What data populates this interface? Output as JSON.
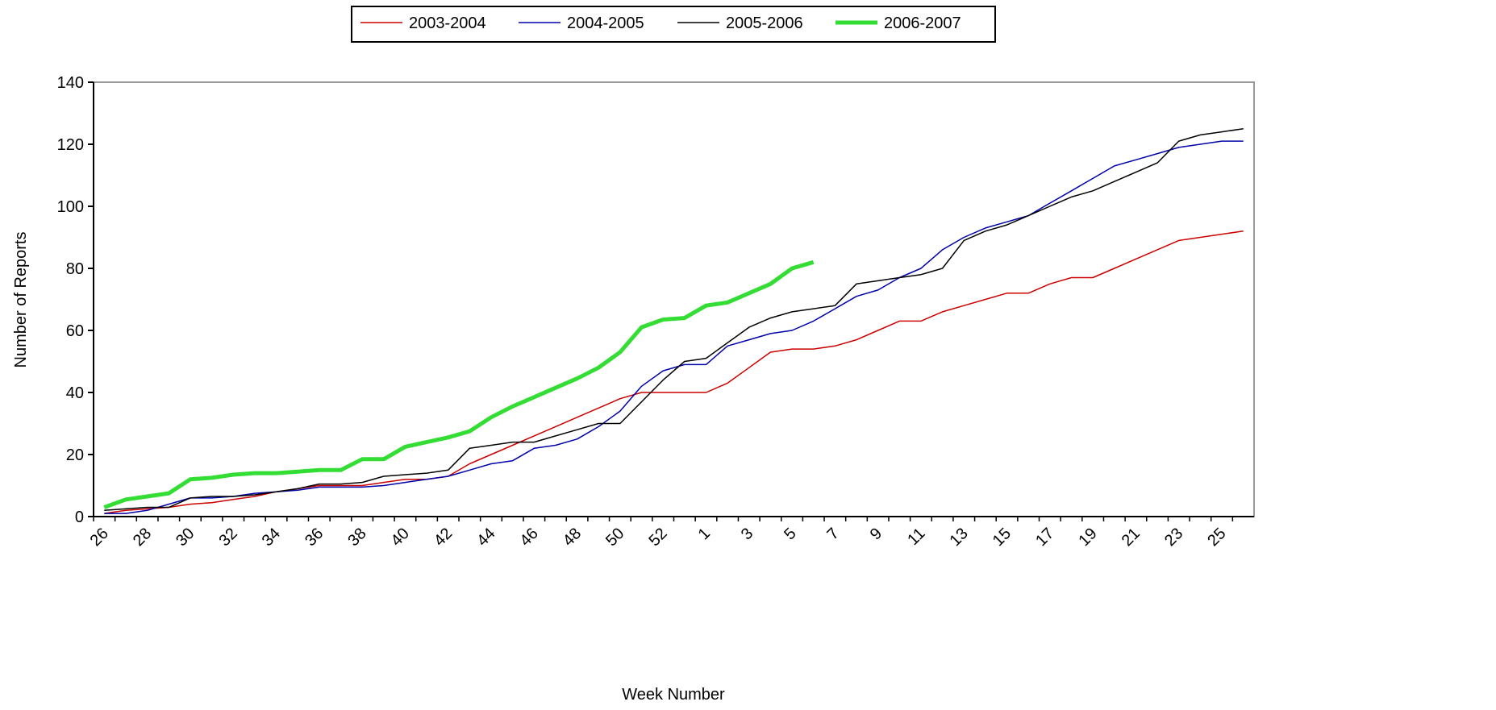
{
  "chart_data": {
    "type": "line",
    "x_label": "Week Number",
    "y_label": "Number of Reports",
    "categories": [
      "26",
      null,
      "28",
      null,
      "30",
      null,
      "32",
      null,
      "34",
      null,
      "36",
      null,
      "38",
      null,
      "40",
      null,
      "42",
      null,
      "44",
      null,
      "46",
      null,
      "48",
      null,
      "50",
      null,
      "52",
      null,
      "1",
      null,
      "3",
      null,
      "5",
      null,
      "7",
      null,
      "9",
      null,
      "11",
      null,
      "13",
      null,
      "15",
      null,
      "17",
      null,
      "19",
      null,
      "21",
      null,
      "23",
      null,
      "25",
      null
    ],
    "series": [
      {
        "name": "2003-2004",
        "color": "#cc0000",
        "width": 1.5,
        "values": [
          1,
          2,
          2.5,
          3,
          4,
          4.5,
          5.5,
          6.5,
          8,
          9,
          10,
          10,
          10,
          11,
          12,
          12,
          13,
          17,
          20,
          23,
          26,
          29,
          32,
          35,
          38,
          40,
          40,
          40,
          40,
          43,
          48,
          53,
          54,
          54,
          55,
          57,
          60,
          63,
          63,
          66,
          68,
          70,
          72,
          72,
          75,
          77,
          77,
          80,
          83,
          86,
          89,
          90,
          91,
          92
        ]
      },
      {
        "name": "2004-2005",
        "color": "#0000aa",
        "width": 1.5,
        "values": [
          1,
          1,
          2,
          4,
          6,
          6,
          6.5,
          7.5,
          8,
          8.5,
          9.5,
          9.5,
          9.5,
          10,
          11,
          12,
          13,
          15,
          17,
          18,
          22,
          23,
          25,
          29,
          34,
          42,
          47,
          49,
          49,
          55,
          57,
          59,
          60,
          63,
          67,
          71,
          73,
          77,
          80,
          86,
          90,
          93,
          95,
          97,
          101,
          105,
          109,
          113,
          115,
          117,
          119,
          120,
          121,
          121
        ]
      },
      {
        "name": "2005-2006",
        "color": "#000000",
        "width": 1.5,
        "values": [
          2,
          2.5,
          3,
          3,
          6,
          6.5,
          6.5,
          7,
          8,
          9,
          10.5,
          10.5,
          11,
          13,
          13.5,
          14,
          15,
          22,
          23,
          24,
          24,
          26,
          28,
          30,
          30,
          37,
          44,
          50,
          51,
          56,
          61,
          64,
          66,
          67,
          68,
          75,
          76,
          77,
          78,
          80,
          89,
          92,
          94,
          97,
          100,
          103,
          105,
          108,
          111,
          114,
          121,
          123,
          124,
          125
        ]
      },
      {
        "name": "2006-2007",
        "color": "#33dd33",
        "width": 5,
        "values": [
          3,
          5.5,
          6.5,
          7.5,
          12,
          12.5,
          13.5,
          14,
          14,
          14.5,
          15,
          15,
          18.5,
          18.5,
          22.5,
          24,
          25.5,
          27.5,
          32,
          35.5,
          38.5,
          41.5,
          44.5,
          48,
          53,
          61,
          63.5,
          64,
          68,
          69,
          72,
          75,
          80,
          82,
          null,
          null,
          null,
          null,
          null,
          null,
          null,
          null,
          null,
          null,
          null,
          null,
          null,
          null,
          null,
          null,
          null,
          null,
          null,
          null
        ]
      }
    ],
    "ylim": [
      0,
      140
    ],
    "yticks": [
      0,
      20,
      40,
      60,
      80,
      100,
      120,
      140
    ],
    "grid": false,
    "legend": "top"
  }
}
